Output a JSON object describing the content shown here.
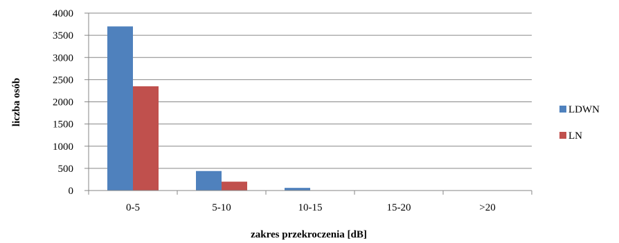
{
  "chart_data": {
    "type": "bar",
    "title": "",
    "xlabel": "zakres przekroczenia [dB]",
    "ylabel": "liczba osób",
    "categories": [
      "0-5",
      "5-10",
      "10-15",
      "15-20",
      ">20"
    ],
    "series": [
      {
        "name": "LDWN",
        "color": "#4F81BD",
        "values": [
          3700,
          440,
          60,
          5,
          2
        ]
      },
      {
        "name": "LN",
        "color": "#C0504D",
        "values": [
          2350,
          200,
          8,
          0,
          0
        ]
      }
    ],
    "ylim": [
      0,
      4000
    ],
    "yticks": [
      0,
      500,
      1000,
      1500,
      2000,
      2500,
      3000,
      3500,
      4000
    ],
    "grid": true,
    "legend_position": "right"
  }
}
